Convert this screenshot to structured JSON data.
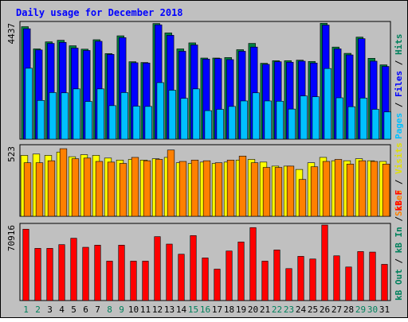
{
  "chart_data": {
    "type": "bar",
    "title": "Daily usage for December 2018",
    "categories": [
      "1",
      "2",
      "3",
      "4",
      "5",
      "6",
      "7",
      "8",
      "9",
      "10",
      "11",
      "12",
      "13",
      "14",
      "15",
      "16",
      "17",
      "18",
      "19",
      "20",
      "21",
      "22",
      "23",
      "24",
      "25",
      "26",
      "27",
      "28",
      "29",
      "30",
      "31"
    ],
    "weekend_days": [
      "1",
      "2",
      "8",
      "9",
      "15",
      "16",
      "22",
      "23",
      "29",
      "30"
    ],
    "panels": [
      {
        "max_label": "4437",
        "ymax": 4437,
        "legend": [
          {
            "text": "Hits",
            "color": "#00805c"
          },
          {
            "text": "Files",
            "color": "#0000ff"
          },
          {
            "text": "Pages",
            "color": "#00c0ff"
          }
        ],
        "series": [
          {
            "name": "Hits",
            "color": "#008040",
            "values": [
              4300,
              3450,
              3720,
              3780,
              3570,
              3440,
              3800,
              3270,
              3950,
              2960,
              2930,
              4420,
              4060,
              3450,
              3680,
              3100,
              3100,
              3120,
              3420,
              3660,
              2900,
              3000,
              3000,
              3020,
              2970,
              4430,
              3520,
              3280,
              3900,
              3090,
              2840
            ]
          },
          {
            "name": "Files",
            "color": "#0000ff",
            "values": [
              4220,
              3410,
              3660,
              3700,
              3480,
              3390,
              3740,
              3240,
              3880,
              2920,
              2910,
              4370,
              3970,
              3360,
              3600,
              3060,
              3080,
              3040,
              3360,
              3520,
              2860,
              2960,
              2940,
              2980,
              2910,
              4360,
              3450,
              3220,
              3840,
              2980,
              2780
            ]
          },
          {
            "name": "Pages",
            "color": "#00c0ff",
            "values": [
              2710,
              1480,
              1780,
              1770,
              1920,
              1440,
              1920,
              1280,
              1780,
              1260,
              1250,
              2160,
              1870,
              1560,
              1920,
              1090,
              1140,
              1250,
              1460,
              1770,
              1460,
              1450,
              1150,
              1650,
              1620,
              2700,
              1580,
              1240,
              1570,
              1140,
              1040
            ]
          }
        ]
      },
      {
        "max_label": "523",
        "ymax": 523,
        "legend": [
          {
            "text": "Visits",
            "color": "#e0e000"
          },
          {
            "text": "Sites",
            "color": "#ff8000"
          }
        ],
        "series": [
          {
            "name": "Visits",
            "color": "#ffff00",
            "values": [
              455,
              465,
              455,
              480,
              445,
              460,
              455,
              435,
              420,
              425,
              420,
              430,
              440,
              400,
              395,
              405,
              395,
              405,
              420,
              425,
              405,
              375,
              375,
              350,
              400,
              440,
              415,
              415,
              430,
              415,
              410
            ]
          },
          {
            "name": "Sites",
            "color": "#ff8000",
            "values": [
              400,
              400,
              415,
              505,
              430,
              435,
              410,
              405,
              395,
              440,
              415,
              425,
              495,
              410,
              420,
              415,
              400,
              420,
              450,
              400,
              365,
              365,
              375,
              275,
              370,
              410,
              425,
              390,
              415,
              410,
              390
            ]
          }
        ]
      },
      {
        "max_label": "70916",
        "ymax": 70916,
        "legend": [
          {
            "text": "kB F",
            "color": "#ff0000"
          },
          {
            "text": "kB In",
            "color": "#00805c"
          },
          {
            "text": "kB Out",
            "color": "#00805c"
          }
        ],
        "series": [
          {
            "name": "kB F",
            "color": "#ff0000",
            "values": [
              67000,
              49000,
              49000,
              52500,
              58500,
              50000,
              52000,
              37000,
              52000,
              37000,
              37000,
              60000,
              53000,
              43500,
              61000,
              40000,
              29500,
              46500,
              55000,
              68500,
              37000,
              47500,
              30000,
              41500,
              39000,
              70900,
              42000,
              31500,
              46000,
              45500,
              34000
            ]
          }
        ]
      }
    ]
  }
}
